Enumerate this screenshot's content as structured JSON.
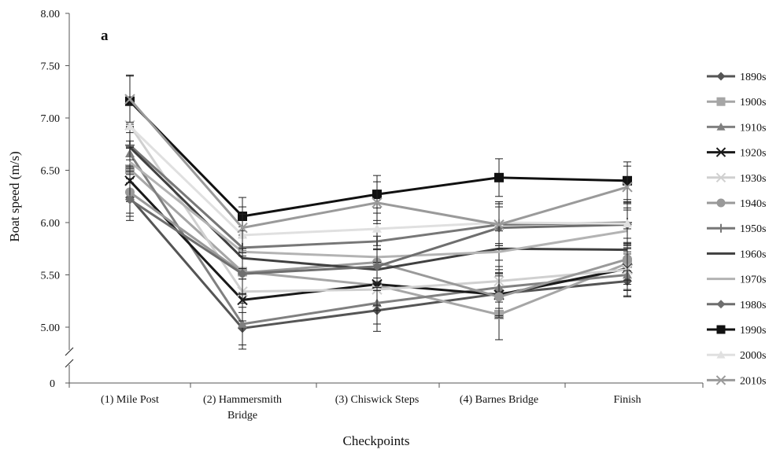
{
  "chart_data": {
    "type": "line",
    "panel_label": "a",
    "xlabel": "Checkpoints",
    "ylabel": "Boat speed (m/s)",
    "categories": [
      [
        "(1) Mile Post"
      ],
      [
        "(2) Hammersmith",
        "Bridge"
      ],
      [
        "(3) Chiswick Steps"
      ],
      [
        "(4) Barnes Bridge"
      ],
      [
        "Finish"
      ]
    ],
    "yticks": [
      "8.00",
      "7.50",
      "7.00",
      "6.50",
      "6.00",
      "5.50",
      "5.00"
    ],
    "y_zero_label": "0",
    "ylim": [
      5.0,
      8.0
    ],
    "axis_break": true,
    "legend_position": "right",
    "series": [
      {
        "name": "1890s",
        "values": [
          6.24,
          4.99,
          5.16,
          5.32,
          5.44
        ],
        "color": "#555555",
        "marker": "diamond",
        "error": [
          0.18,
          0.2,
          0.2,
          0.2,
          0.15
        ]
      },
      {
        "name": "1900s",
        "values": [
          6.51,
          5.53,
          5.4,
          5.12,
          5.61
        ],
        "color": "#a6a6a6",
        "marker": "square",
        "error": [
          0.2,
          0.2,
          0.2,
          0.24,
          0.2
        ]
      },
      {
        "name": "1910s",
        "values": [
          6.66,
          5.03,
          5.23,
          5.38,
          5.5
        ],
        "color": "#808080",
        "marker": "triangle",
        "error": [
          0.2,
          0.2,
          0.2,
          0.2,
          0.2
        ]
      },
      {
        "name": "1920s",
        "values": [
          6.4,
          5.26,
          5.41,
          5.31,
          5.56
        ],
        "color": "#1a1a1a",
        "marker": "x",
        "error": [
          0.2,
          0.2,
          0.2,
          0.2,
          0.2
        ]
      },
      {
        "name": "1930s",
        "values": [
          6.93,
          5.34,
          5.36,
          5.44,
          5.55
        ],
        "color": "#d0d0d0",
        "marker": "x",
        "error": [
          0.2,
          0.2,
          0.2,
          0.2,
          0.2
        ]
      },
      {
        "name": "1940s",
        "values": [
          6.29,
          5.52,
          5.62,
          5.29,
          5.65
        ],
        "color": "#999999",
        "marker": "circle",
        "error": [
          0.2,
          0.2,
          0.2,
          0.2,
          0.2
        ]
      },
      {
        "name": "1950s",
        "values": [
          6.74,
          5.76,
          5.82,
          5.98,
          6.0
        ],
        "color": "#777777",
        "marker": "plus",
        "error": [
          0.2,
          0.2,
          0.2,
          0.2,
          0.2
        ]
      },
      {
        "name": "1960s",
        "values": [
          6.72,
          5.66,
          5.55,
          5.75,
          5.74
        ],
        "color": "#404040",
        "marker": "none",
        "error": [
          0.2,
          0.2,
          0.2,
          0.2,
          0.2
        ]
      },
      {
        "name": "1970s",
        "values": [
          6.58,
          5.72,
          5.67,
          5.72,
          5.92
        ],
        "color": "#b3b3b3",
        "marker": "none",
        "error": [
          0.2,
          0.2,
          0.2,
          0.2,
          0.2
        ]
      },
      {
        "name": "1980s",
        "values": [
          6.22,
          5.51,
          5.58,
          5.95,
          5.98
        ],
        "color": "#6e6e6e",
        "marker": "diamond",
        "error": [
          0.2,
          0.2,
          0.2,
          0.2,
          0.2
        ]
      },
      {
        "name": "1990s",
        "values": [
          7.16,
          6.06,
          6.27,
          6.43,
          6.4
        ],
        "color": "#111111",
        "marker": "square",
        "error": [
          0.25,
          0.18,
          0.18,
          0.18,
          0.18
        ]
      },
      {
        "name": "2000s",
        "values": [
          6.92,
          5.88,
          5.94,
          6.0,
          5.99
        ],
        "color": "#e0e0e0",
        "marker": "triangle",
        "error": [
          0.2,
          0.2,
          0.2,
          0.2,
          0.2
        ]
      },
      {
        "name": "2010s",
        "values": [
          7.18,
          5.95,
          6.19,
          5.98,
          6.34
        ],
        "color": "#9a9a9a",
        "marker": "x",
        "error": [
          0.22,
          0.2,
          0.2,
          0.2,
          0.2
        ]
      }
    ]
  }
}
